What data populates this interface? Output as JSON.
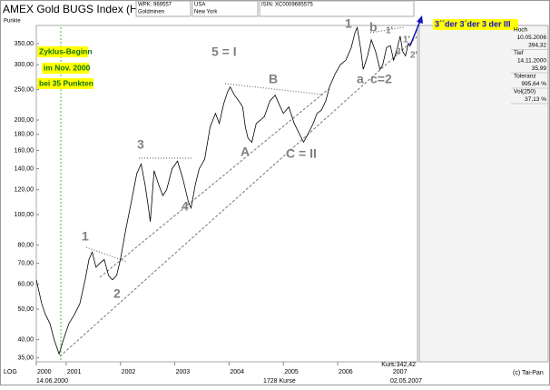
{
  "chart_data": {
    "type": "line",
    "title": "AMEX Gold BUGS Index (HUI)",
    "header": {
      "wpk": "WPK: 969557",
      "sector": "Goldminen",
      "country": "USA",
      "exchange": "New York",
      "isin": "ISIN: XC0009695575"
    },
    "y_label": "Punkte",
    "log_scale": true,
    "grid": false,
    "xlim": [
      2000.45,
      2007.47
    ],
    "xticks": [
      {
        "value": 2000.45,
        "label": "2000"
      },
      2001,
      2002,
      2003,
      2004,
      2005,
      2006,
      2007
    ],
    "ylim": [
      34,
      400
    ],
    "yticks": [
      {
        "value": 35,
        "label": "35,00"
      },
      {
        "value": 40,
        "label": "40,00"
      },
      {
        "value": 50,
        "label": "50,00"
      },
      {
        "value": 60,
        "label": "60,00"
      },
      {
        "value": 70,
        "label": "70,00"
      },
      {
        "value": 80,
        "label": "80,00"
      },
      {
        "value": 100,
        "label": "100,00"
      },
      {
        "value": 120,
        "label": "120,00"
      },
      {
        "value": 140,
        "label": "140,00"
      },
      {
        "value": 160,
        "label": "160,00"
      },
      {
        "value": 180,
        "label": "180,00"
      },
      {
        "value": 200,
        "label": "200,00"
      },
      {
        "value": 250,
        "label": "250,00"
      },
      {
        "value": 300,
        "label": "300,00"
      },
      {
        "value": 350,
        "label": "350,00"
      }
    ],
    "x": [
      2000.45,
      2000.55,
      2000.62,
      2000.7,
      2000.78,
      2000.87,
      2000.95,
      2001.05,
      2001.15,
      2001.25,
      2001.35,
      2001.42,
      2001.48,
      2001.55,
      2001.62,
      2001.7,
      2001.78,
      2001.85,
      2001.93,
      2002.0,
      2002.1,
      2002.2,
      2002.3,
      2002.38,
      2002.45,
      2002.5,
      2002.55,
      2002.62,
      2002.7,
      2002.78,
      2002.85,
      2002.95,
      2003.05,
      2003.15,
      2003.25,
      2003.3,
      2003.38,
      2003.45,
      2003.55,
      2003.65,
      2003.75,
      2003.82,
      2003.9,
      2003.97,
      2004.02,
      2004.1,
      2004.18,
      2004.25,
      2004.3,
      2004.35,
      2004.42,
      2004.5,
      2004.58,
      2004.65,
      2004.75,
      2004.85,
      2004.92,
      2005.0,
      2005.1,
      2005.2,
      2005.3,
      2005.37,
      2005.45,
      2005.55,
      2005.62,
      2005.7,
      2005.78,
      2005.85,
      2005.95,
      2006.05,
      2006.15,
      2006.25,
      2006.32,
      2006.36,
      2006.42,
      2006.47,
      2006.55,
      2006.62,
      2006.7,
      2006.78,
      2006.83,
      2006.9,
      2006.97,
      2007.03,
      2007.1,
      2007.15,
      2007.2,
      2007.25,
      2007.3,
      2007.34
    ],
    "series": [
      {
        "color": "#000000",
        "values": [
          62,
          52,
          48,
          45,
          40,
          36,
          40,
          45,
          48,
          52,
          62,
          72,
          76,
          68,
          70,
          72,
          64,
          62,
          64,
          72,
          90,
          110,
          135,
          145,
          125,
          110,
          95,
          138,
          125,
          115,
          120,
          140,
          148,
          130,
          110,
          105,
          125,
          140,
          150,
          190,
          210,
          195,
          225,
          245,
          255,
          240,
          230,
          220,
          190,
          175,
          170,
          195,
          200,
          205,
          230,
          240,
          225,
          210,
          220,
          195,
          180,
          170,
          180,
          195,
          210,
          215,
          230,
          255,
          280,
          300,
          310,
          340,
          380,
          394,
          340,
          290,
          320,
          360,
          330,
          290,
          300,
          340,
          345,
          310,
          340,
          370,
          330,
          320,
          350,
          342.42
        ]
      }
    ],
    "annotations": [
      "Zyklus-Beginn",
      "im Nov. 2000",
      "bei 35 Punkten",
      "5 = I",
      "1",
      "2",
      "3",
      "4",
      "A",
      "B",
      "C = II",
      "1",
      "a",
      "b",
      "c=2",
      "1'",
      "2'",
      "1'",
      "2'",
      "3´´der 3´der 3 der III"
    ],
    "info_panel": [
      [
        "Hoch",
        "10.05.2006",
        "394,32"
      ],
      [
        "Tief",
        "14.11.2000",
        "35,99"
      ],
      [
        "Toleranz",
        "995,64 %"
      ],
      [
        "Vol(250)",
        "37,13 %"
      ]
    ],
    "footer": {
      "scale": "LOG",
      "start": "14.06.2000",
      "count": "1728 Kurse",
      "end": "02.05.2007",
      "last": "Kurs:342,42",
      "copyright": "(c) Tai-Pan"
    }
  }
}
